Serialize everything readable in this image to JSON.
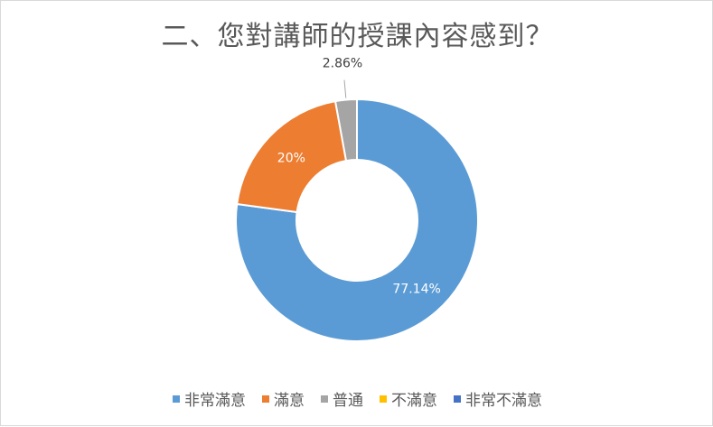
{
  "chart_data": {
    "type": "doughnut",
    "title": "二、您對講師的授課內容感到？",
    "categories": [
      "非常滿意",
      "滿意",
      "普通",
      "不滿意",
      "非常不滿意"
    ],
    "values": [
      77.14,
      20,
      2.86,
      0,
      0
    ],
    "labels": [
      "77.14%",
      "20%",
      "2.86%",
      "",
      ""
    ],
    "colors": [
      "#5b9bd5",
      "#ed7d31",
      "#a5a5a5",
      "#ffc000",
      "#4472c4"
    ],
    "legend_position": "bottom"
  }
}
